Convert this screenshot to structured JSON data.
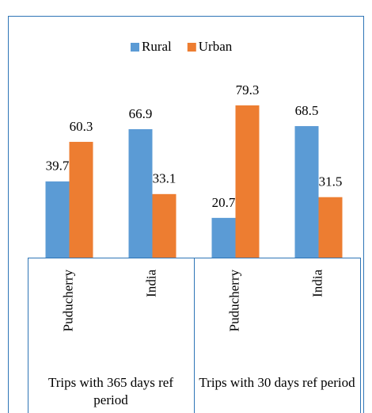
{
  "chart_data": {
    "type": "bar",
    "groups": [
      {
        "name": "Trips with 365 days ref period",
        "categories": [
          "Puducherry",
          "India"
        ]
      },
      {
        "name": "Trips with 30 days ref period",
        "categories": [
          "Puducherry",
          "India"
        ]
      }
    ],
    "series": [
      {
        "name": "Rural",
        "color": "#5b9bd5",
        "values": [
          39.7,
          66.9,
          20.7,
          68.5
        ]
      },
      {
        "name": "Urban",
        "color": "#ed7d31",
        "values": [
          60.3,
          33.1,
          79.3,
          31.5
        ]
      }
    ],
    "ylim": [
      0,
      90
    ],
    "legend": "top"
  }
}
